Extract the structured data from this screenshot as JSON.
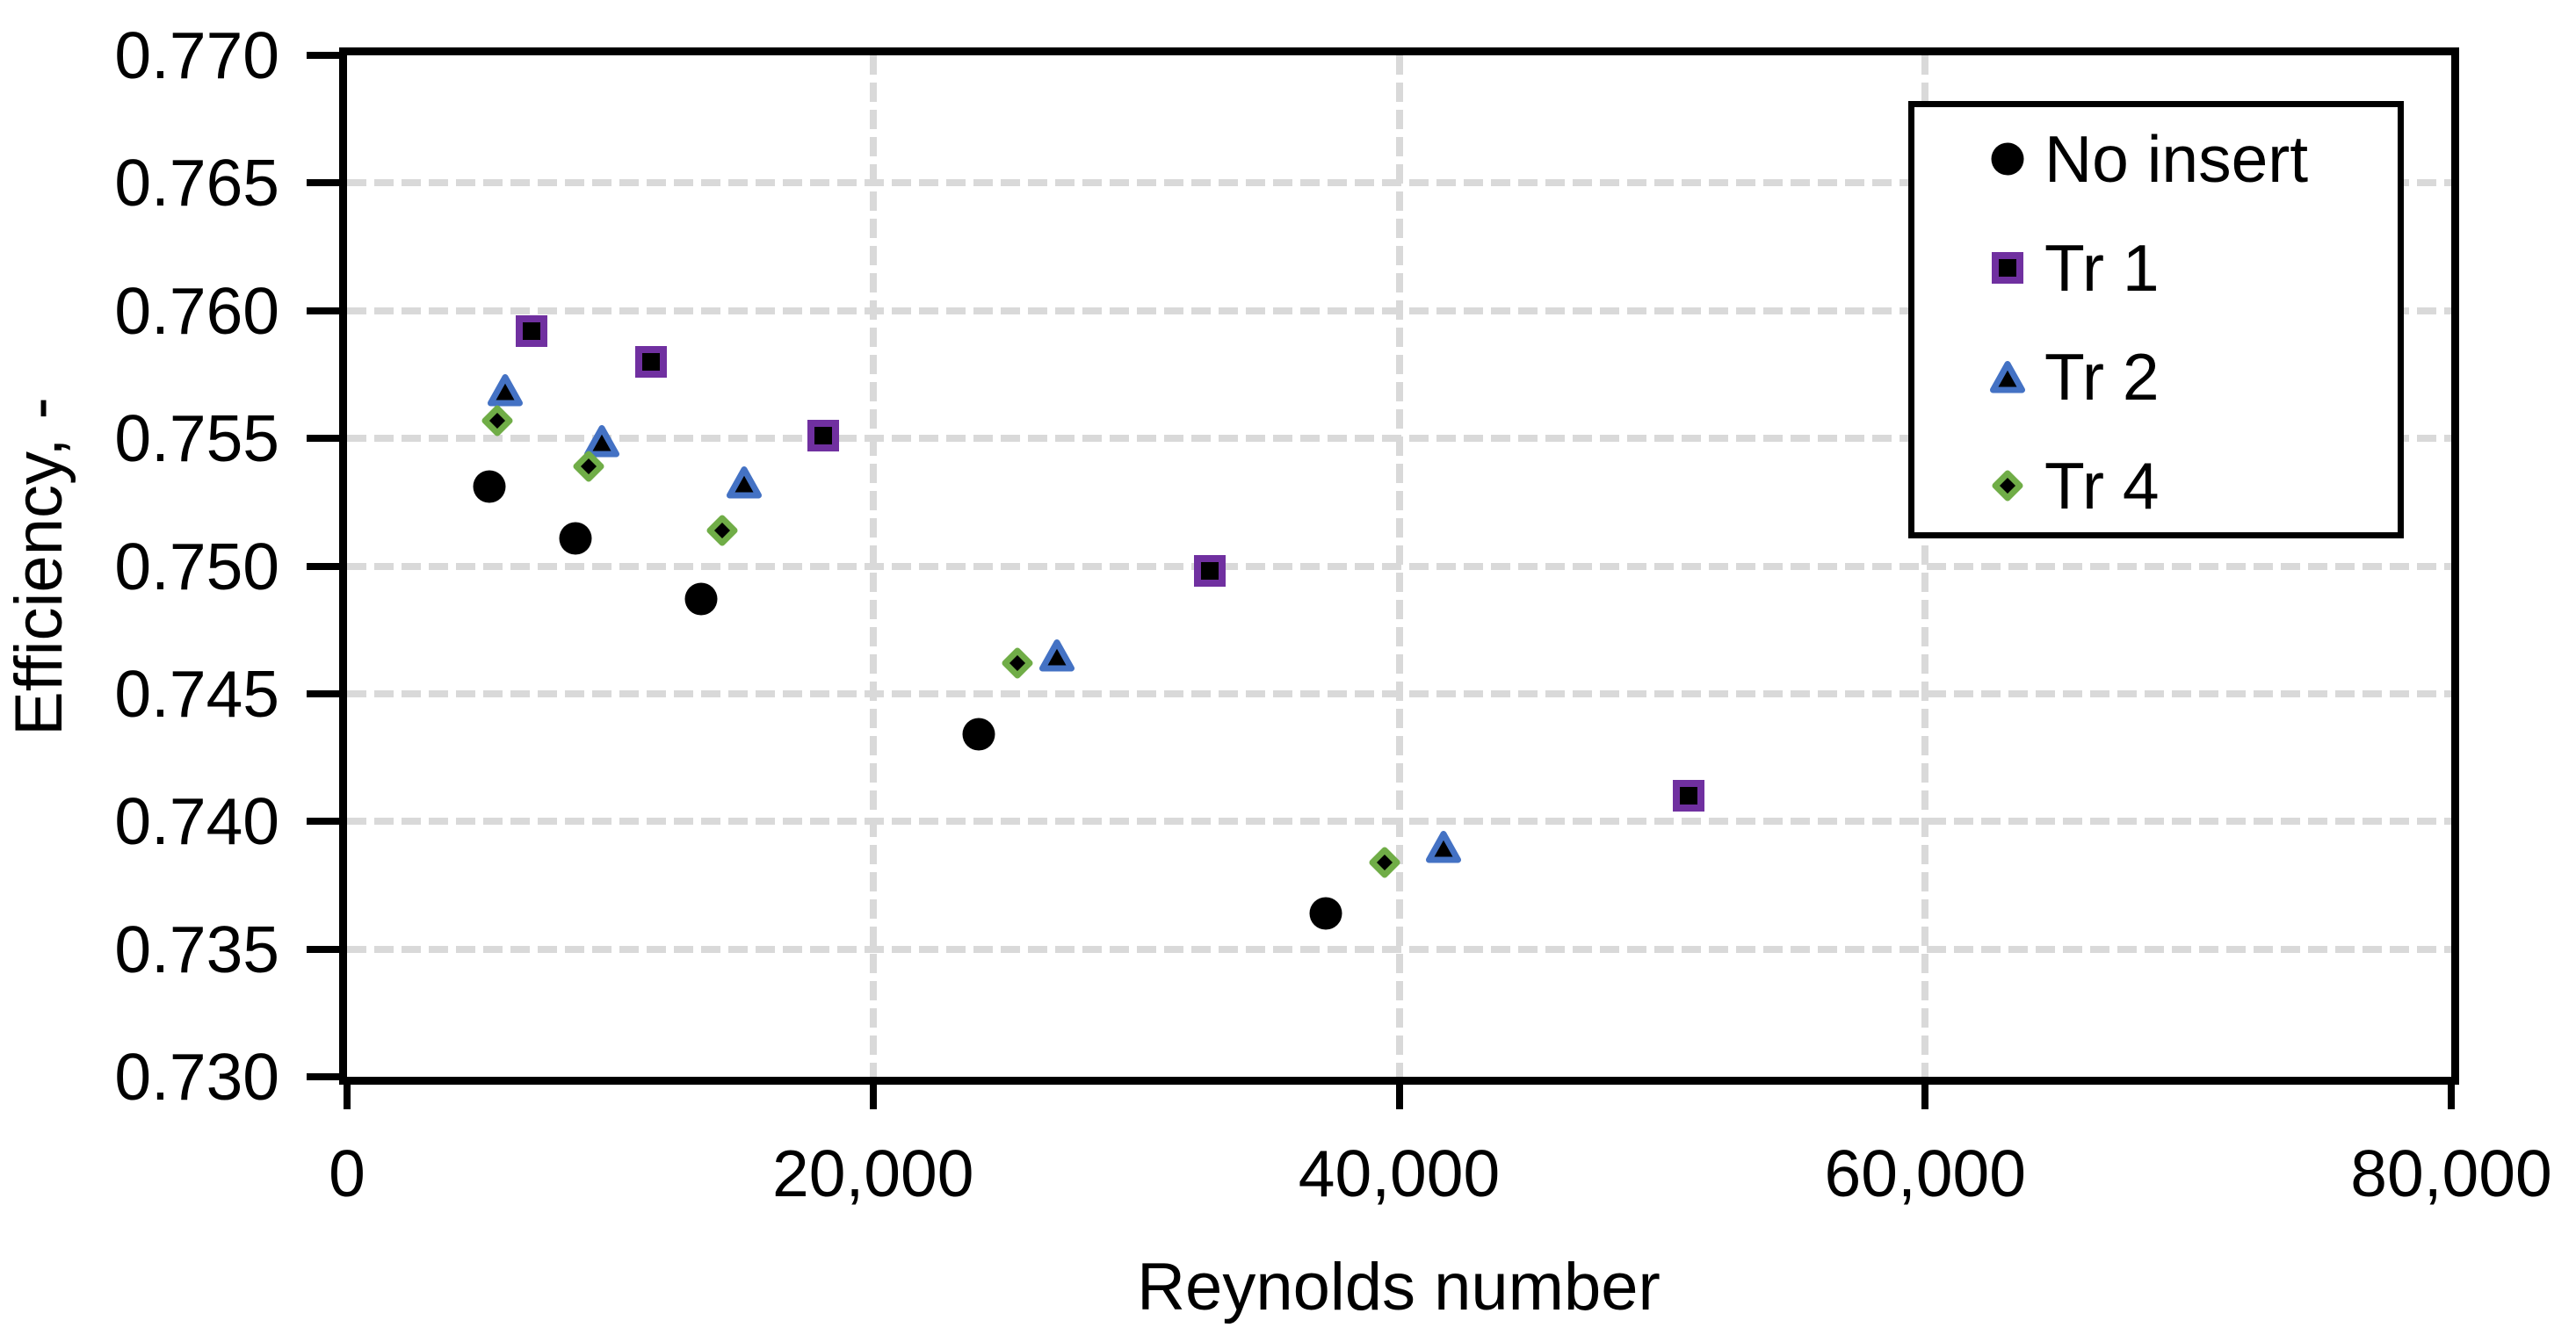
{
  "chart_data": {
    "type": "scatter",
    "title": "",
    "xlabel": "Reynolds number",
    "ylabel": "Efficiency, -",
    "xlim": [
      0,
      80000
    ],
    "ylim": [
      0.73,
      0.77
    ],
    "x_ticks": [
      {
        "value": 0,
        "label": "0"
      },
      {
        "value": 20000,
        "label": "20,000"
      },
      {
        "value": 40000,
        "label": "40,000"
      },
      {
        "value": 60000,
        "label": "60,000"
      },
      {
        "value": 80000,
        "label": "80,000"
      }
    ],
    "y_ticks": [
      {
        "value": 0.73,
        "label": "0.730"
      },
      {
        "value": 0.735,
        "label": "0.735"
      },
      {
        "value": 0.74,
        "label": "0.740"
      },
      {
        "value": 0.745,
        "label": "0.745"
      },
      {
        "value": 0.75,
        "label": "0.750"
      },
      {
        "value": 0.755,
        "label": "0.755"
      },
      {
        "value": 0.76,
        "label": "0.760"
      },
      {
        "value": 0.765,
        "label": "0.765"
      },
      {
        "value": 0.77,
        "label": "0.770"
      }
    ],
    "x_gridlines": [
      20000,
      40000,
      60000
    ],
    "y_gridlines": [
      0.735,
      0.74,
      0.745,
      0.75,
      0.755,
      0.76,
      0.765
    ],
    "grid_style": "dashed",
    "legend_position": "top-right-inside",
    "series": [
      {
        "name": "No insert",
        "marker": "circle",
        "fill": "#000000",
        "stroke": "#000000",
        "points": [
          [
            5400,
            0.7531
          ],
          [
            8700,
            0.7511
          ],
          [
            13450,
            0.7487
          ],
          [
            24000,
            0.7434
          ],
          [
            37200,
            0.7364
          ]
        ]
      },
      {
        "name": "Tr 1",
        "marker": "square",
        "fill": "#000000",
        "stroke": "#7030A0",
        "points": [
          [
            7000,
            0.7592
          ],
          [
            11550,
            0.758
          ],
          [
            18100,
            0.7551
          ],
          [
            32800,
            0.7498
          ],
          [
            51000,
            0.741
          ]
        ]
      },
      {
        "name": "Tr 2",
        "marker": "triangle",
        "fill": "#000000",
        "stroke": "#4472C4",
        "points": [
          [
            6000,
            0.7569
          ],
          [
            9700,
            0.7549
          ],
          [
            15100,
            0.7533
          ],
          [
            27000,
            0.7465
          ],
          [
            41700,
            0.739
          ]
        ]
      },
      {
        "name": "Tr 4",
        "marker": "diamond",
        "fill": "#000000",
        "stroke": "#70AD47",
        "points": [
          [
            5700,
            0.7557
          ],
          [
            9200,
            0.7539
          ],
          [
            14250,
            0.7514
          ],
          [
            25500,
            0.7462
          ],
          [
            39450,
            0.7384
          ]
        ]
      }
    ]
  },
  "legend": {
    "items": [
      {
        "label": "No insert",
        "marker": "circle"
      },
      {
        "label": "Tr 1",
        "marker": "square"
      },
      {
        "label": "Tr 2",
        "marker": "triangle"
      },
      {
        "label": "Tr 4",
        "marker": "diamond"
      }
    ]
  },
  "colors": {
    "background": "#FFFFFF",
    "axis": "#000000",
    "grid": "#D9D9D9",
    "no_insert": "#000000",
    "tr1_stroke": "#7030A0",
    "tr2_stroke": "#4472C4",
    "tr4_stroke": "#70AD47",
    "marker_fill": "#000000"
  }
}
